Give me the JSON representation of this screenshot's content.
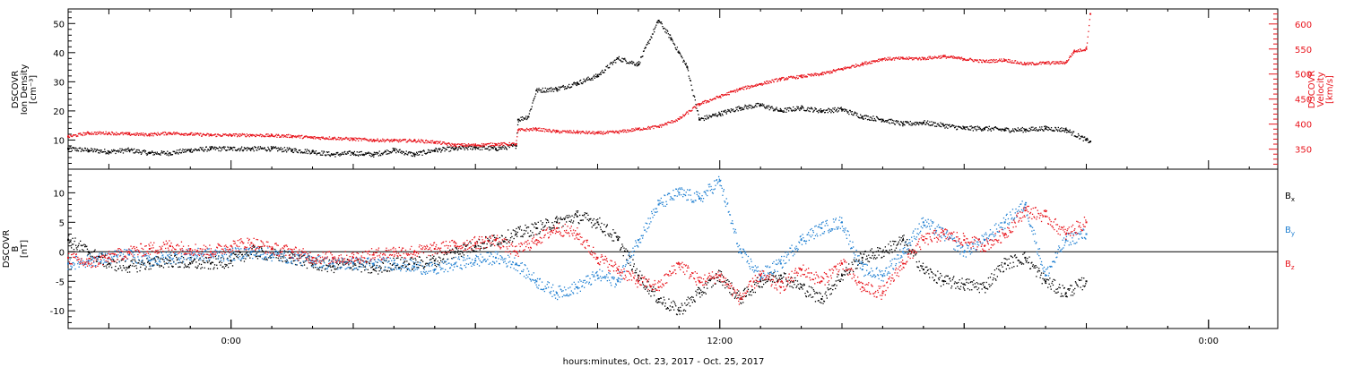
{
  "colors": {
    "black": "#000000",
    "red": "#e8141c",
    "blue": "#1f7fd1",
    "axis": "#000000"
  },
  "xlabel": "hours:minutes, Oct. 23, 2017 - Oct. 25, 2017",
  "x_ticks": [
    {
      "t": 0,
      "label": "0:00"
    },
    {
      "t": 12,
      "label": "12:00"
    },
    {
      "t": 24,
      "label": "0:00"
    }
  ],
  "x_range": [
    -4,
    25.7
  ],
  "chart_data": [
    {
      "type": "scatter",
      "panel": "top",
      "left_ylabel": [
        "DSCOVR",
        "Ion Density",
        "[cm⁻³]"
      ],
      "right_ylabel": [
        "DSCOVR",
        "Velocity",
        "[km/s]"
      ],
      "left_ylim": [
        0,
        55
      ],
      "left_ticks": [
        "10",
        "20",
        "30",
        "40",
        "50"
      ],
      "right_ylim": [
        310,
        630
      ],
      "right_ticks": [
        "350",
        "400",
        "450",
        "500",
        "550",
        "600"
      ],
      "series": [
        {
          "axis": "left",
          "color": "black",
          "x": [
            -4,
            -3.5,
            -3,
            -2.5,
            -2,
            -1.5,
            -1,
            -0.5,
            0,
            0.5,
            1,
            1.5,
            2,
            2.5,
            3,
            3.5,
            4,
            4.5,
            5,
            5.5,
            6,
            6.5,
            7,
            7.05,
            7.3,
            7.5,
            8,
            8.5,
            9,
            9.5,
            10,
            10.5,
            10.8,
            11,
            11.2,
            11.5,
            12,
            12.5,
            13,
            13.5,
            14,
            14.5,
            15,
            15.5,
            16,
            16.5,
            17,
            17.5,
            18,
            18.5,
            19,
            19.5,
            20,
            20.5,
            21,
            21.1
          ],
          "y": [
            7,
            6.5,
            6,
            6.5,
            5.5,
            5.5,
            6.5,
            7,
            7,
            7,
            7,
            6.5,
            6,
            5,
            5.5,
            5,
            6.5,
            5,
            6.5,
            7,
            7.5,
            7,
            8,
            17,
            18,
            27,
            27.5,
            29.5,
            32,
            38,
            36,
            51,
            45,
            40,
            35,
            17,
            19,
            21,
            22,
            20,
            21,
            20,
            20.5,
            18,
            17,
            15.5,
            16,
            15,
            14,
            14,
            13.5,
            13.5,
            14,
            13.5,
            10,
            9.5
          ]
        },
        {
          "axis": "right",
          "color": "red",
          "x": [
            -4,
            -3.5,
            -3,
            -2.5,
            -2,
            -1.5,
            -1,
            -0.5,
            0,
            0.5,
            1,
            1.5,
            2,
            2.5,
            3,
            3.5,
            4,
            4.5,
            5,
            5.5,
            6,
            6.5,
            7,
            7.05,
            7.5,
            8,
            8.5,
            9,
            9.5,
            10,
            10.5,
            11,
            11.5,
            12,
            12.5,
            13,
            13.5,
            14,
            14.5,
            15,
            15.5,
            16,
            16.5,
            17,
            17.5,
            18,
            18.5,
            19,
            19.5,
            20,
            20.5,
            20.7,
            21,
            21.1
          ],
          "y": [
            375,
            382,
            382,
            380,
            379,
            382,
            380,
            378,
            378,
            378,
            377,
            376,
            373,
            372,
            370,
            368,
            367,
            367,
            364,
            358,
            358,
            360,
            360,
            388,
            390,
            385,
            384,
            382,
            384,
            390,
            395,
            410,
            440,
            455,
            470,
            480,
            490,
            495,
            500,
            510,
            520,
            530,
            531,
            531,
            535,
            530,
            525,
            528,
            520,
            522,
            523,
            545,
            550,
            620
          ]
        }
      ]
    },
    {
      "type": "scatter",
      "panel": "bottom",
      "left_ylabel": [
        "DSCOVR",
        "B",
        "[nT]"
      ],
      "left_ylim": [
        -13,
        14
      ],
      "left_ticks": [
        "-10",
        "-5",
        "0",
        "5",
        "10"
      ],
      "zero_line": true,
      "series": [
        {
          "name": "Bx",
          "color": "black",
          "x": [
            -4,
            -3.5,
            -3,
            -2.5,
            -2,
            -1.5,
            -1,
            -0.5,
            0,
            0.5,
            1,
            1.5,
            2,
            2.5,
            3,
            3.5,
            4,
            4.5,
            5,
            5.5,
            6,
            6.5,
            7,
            7.5,
            8,
            8.5,
            9,
            9.5,
            10,
            10.5,
            11,
            11.5,
            12,
            12.5,
            13,
            13.5,
            14,
            14.5,
            15,
            15.5,
            16,
            16.5,
            17,
            17.5,
            18,
            18.5,
            19,
            19.5,
            20,
            20.5,
            21
          ],
          "y": [
            2,
            0,
            -2,
            -2.5,
            -2,
            -1.5,
            -2,
            -2,
            -1.5,
            0,
            -0.5,
            -1,
            -2,
            -2.5,
            -2,
            -3,
            -2,
            -2,
            -1.5,
            0,
            1,
            2,
            3,
            4,
            5,
            6,
            5,
            2,
            -4,
            -8,
            -10,
            -7,
            -4,
            -8,
            -5,
            -4,
            -6,
            -8,
            -4,
            -1,
            0,
            2,
            -3,
            -5,
            -5.5,
            -6,
            -2,
            -1,
            -5,
            -7,
            -5
          ]
        },
        {
          "name": "By",
          "color": "blue",
          "x": [
            -4,
            -3.5,
            -3,
            -2.5,
            -2,
            -1.5,
            -1,
            -0.5,
            0,
            0.5,
            1,
            1.5,
            2,
            2.5,
            3,
            3.5,
            4,
            4.5,
            5,
            5.5,
            6,
            6.5,
            7,
            7.5,
            8,
            8.5,
            9,
            9.5,
            10,
            10.5,
            11,
            11.5,
            12,
            12.5,
            13,
            13.5,
            14,
            14.5,
            15,
            15.5,
            16,
            16.5,
            17,
            17.5,
            18,
            18.5,
            19,
            19.5,
            20,
            20.5,
            21
          ],
          "y": [
            -2,
            -1.5,
            -1,
            -0.5,
            -1.5,
            -1,
            -0.5,
            -0.5,
            -0.5,
            0,
            -0.5,
            -1,
            -1.5,
            -2,
            -2,
            -2,
            -2,
            -2.5,
            -3,
            -2,
            -1.5,
            -1,
            -2,
            -5,
            -7,
            -6,
            -4,
            -5,
            2,
            8,
            10,
            9,
            12,
            0,
            -4,
            -2,
            2,
            4,
            5,
            -3,
            -4,
            0,
            5,
            3,
            0,
            2,
            5,
            8,
            -4,
            2,
            3
          ]
        },
        {
          "name": "Bz",
          "color": "red",
          "x": [
            -4,
            -3.5,
            -3,
            -2.5,
            -2,
            -1.5,
            -1,
            -0.5,
            0,
            0.5,
            1,
            1.5,
            2,
            2.5,
            3,
            3.5,
            4,
            4.5,
            5,
            5.5,
            6,
            6.5,
            7,
            7.5,
            8,
            8.5,
            9,
            9.5,
            10,
            10.5,
            11,
            11.5,
            12,
            12.5,
            13,
            13.5,
            14,
            14.5,
            15,
            15.5,
            16,
            16.5,
            17,
            17.5,
            18,
            18.5,
            19,
            19.5,
            20,
            20.5,
            21
          ],
          "y": [
            -1,
            -2,
            -1,
            0,
            0.5,
            1,
            0.5,
            0,
            1,
            1.5,
            0.5,
            0,
            -1,
            -1,
            -1,
            -0.5,
            0,
            0,
            0.5,
            1,
            1.5,
            2,
            0,
            2,
            4,
            3,
            -1,
            -3,
            -5,
            -6,
            -2,
            -5,
            -4,
            -8,
            -4,
            -6,
            -3,
            -5,
            -2,
            -6,
            -7,
            -2,
            2,
            3,
            2,
            1,
            3,
            7,
            6,
            3,
            5
          ]
        }
      ],
      "legend": [
        {
          "base": "B",
          "sub": "x",
          "color": "black"
        },
        {
          "base": "B",
          "sub": "y",
          "color": "blue"
        },
        {
          "base": "B",
          "sub": "z",
          "color": "red"
        }
      ]
    }
  ]
}
